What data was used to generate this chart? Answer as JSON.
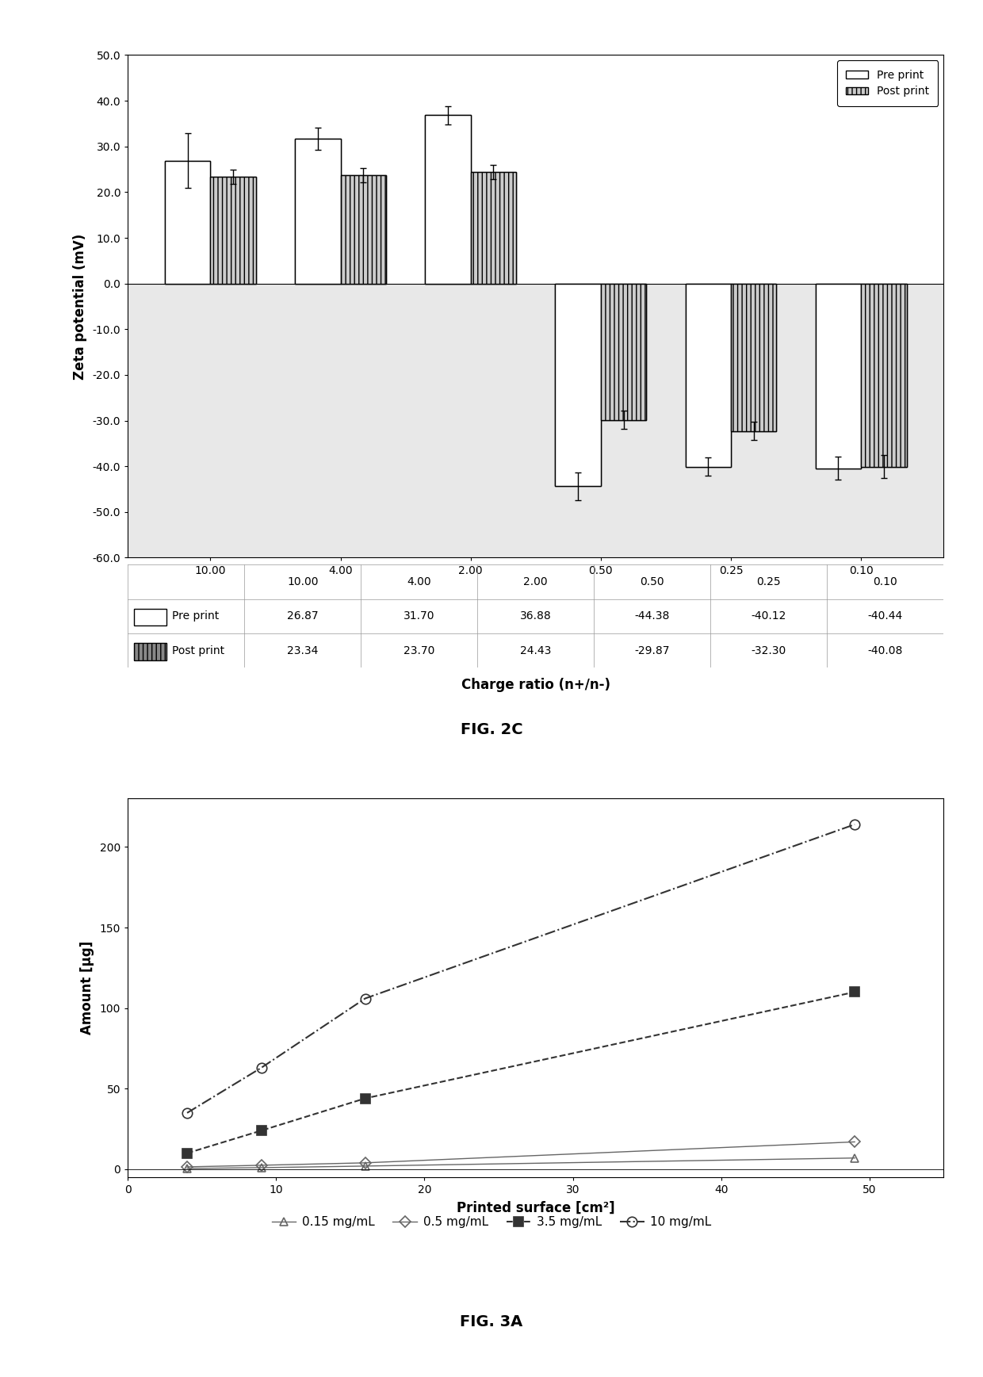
{
  "fig2c": {
    "categories": [
      "10.00",
      "4.00",
      "2.00",
      "0.50",
      "0.25",
      "0.10"
    ],
    "pre_print": [
      26.87,
      31.7,
      36.88,
      -44.38,
      -40.12,
      -40.44
    ],
    "post_print": [
      23.34,
      23.7,
      24.43,
      -29.87,
      -32.3,
      -40.08
    ],
    "pre_print_err": [
      6.0,
      2.5,
      2.0,
      3.0,
      2.0,
      2.5
    ],
    "post_print_err": [
      1.5,
      1.5,
      1.5,
      2.0,
      2.0,
      2.5
    ],
    "ylabel": "Zeta potential (mV)",
    "xlabel": "Charge ratio (n+/n-)",
    "ylim": [
      -60.0,
      50.0
    ],
    "yticks": [
      -60.0,
      -50.0,
      -40.0,
      -30.0,
      -20.0,
      -10.0,
      0.0,
      10.0,
      20.0,
      30.0,
      40.0,
      50.0
    ],
    "bar_width": 0.35,
    "table_rows": [
      "Pre print",
      "Post print"
    ],
    "table_data": [
      [
        26.87,
        31.7,
        36.88,
        -44.38,
        -40.12,
        -40.44
      ],
      [
        23.34,
        23.7,
        24.43,
        -29.87,
        -32.3,
        -40.08
      ]
    ],
    "figure_label": "FIG. 2C"
  },
  "fig3a": {
    "xlabel": "Printed surface [cm²]",
    "ylabel": "Amount [µg]",
    "xlim": [
      0,
      55
    ],
    "ylim": [
      -5,
      230
    ],
    "yticks": [
      0,
      50,
      100,
      150,
      200
    ],
    "xticks": [
      0,
      10,
      20,
      30,
      40,
      50
    ],
    "series": [
      {
        "label": "0.15 mg/mL",
        "x": [
          4,
          9,
          16,
          49
        ],
        "y": [
          0.5,
          1.0,
          2.0,
          7.0
        ],
        "marker": "^",
        "linestyle": "-",
        "color": "#666666",
        "markersize": 7,
        "linewidth": 1.0,
        "mfc": "none"
      },
      {
        "label": "0.5 mg/mL",
        "x": [
          4,
          9,
          16,
          49
        ],
        "y": [
          1.5,
          2.5,
          4.0,
          17.0
        ],
        "marker": "D",
        "linestyle": "-",
        "color": "#666666",
        "markersize": 7,
        "linewidth": 1.0,
        "mfc": "none"
      },
      {
        "label": "3.5 mg/mL",
        "x": [
          4,
          9,
          16,
          49
        ],
        "y": [
          10.0,
          24.0,
          44.0,
          110.0
        ],
        "marker": "s",
        "linestyle": "--",
        "color": "#333333",
        "markersize": 8,
        "linewidth": 1.5,
        "mfc": "#333333"
      },
      {
        "label": "10 mg/mL",
        "x": [
          4,
          9,
          16,
          49
        ],
        "y": [
          35.0,
          63.0,
          106.0,
          214.0
        ],
        "marker": "o",
        "linestyle": "-.",
        "color": "#333333",
        "markersize": 9,
        "linewidth": 1.5,
        "mfc": "none"
      }
    ],
    "figure_label": "FIG. 3A"
  },
  "background_color": "#ffffff"
}
